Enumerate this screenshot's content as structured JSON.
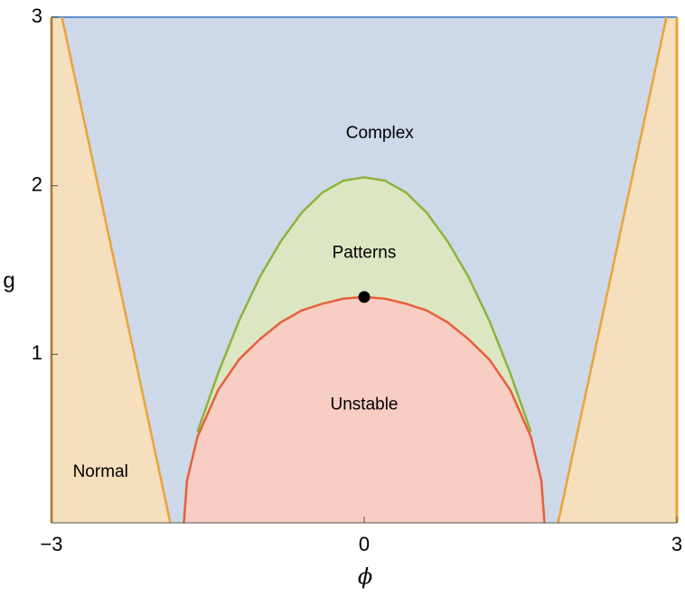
{
  "chart_data": {
    "type": "region",
    "xlabel": "ϕ",
    "ylabel": "g",
    "xlim": [
      -3,
      3
    ],
    "ylim": [
      0,
      3
    ],
    "xticks": [
      {
        "value": -3,
        "label": "−3"
      },
      0,
      3
    ],
    "yticks": [
      1,
      2,
      3
    ],
    "background": "#cdd9e8",
    "top_line_color": "#5f8fcf",
    "curves": [
      {
        "color": "#e8a33c",
        "fill": "#f5dfbc",
        "fill_to": "left",
        "x": [
          -2.9,
          -1.86
        ],
        "y": [
          3,
          0
        ]
      },
      {
        "color": "#e8a33c",
        "fill": "#f5dfbc",
        "fill_to": "right",
        "x": [
          1.86,
          2.9
        ],
        "y": [
          0,
          3
        ]
      },
      {
        "color": "#8cb43c",
        "fill": "#dde6c3",
        "fill_to": "bottom",
        "x": [
          -1.6,
          -1.4,
          -1.2,
          -1.0,
          -0.8,
          -0.6,
          -0.4,
          -0.2,
          0,
          0.2,
          0.4,
          0.6,
          0.8,
          1.0,
          1.2,
          1.4,
          1.6
        ],
        "y": [
          0.54,
          0.89,
          1.2,
          1.46,
          1.67,
          1.84,
          1.96,
          2.03,
          2.05,
          2.03,
          1.96,
          1.84,
          1.67,
          1.46,
          1.2,
          0.89,
          0.54
        ]
      },
      {
        "color": "#e5603a",
        "fill": "#f8cdc4",
        "fill_to": "bottom",
        "x": [
          -1.73,
          -1.7,
          -1.6,
          -1.4,
          -1.2,
          -1.0,
          -0.8,
          -0.6,
          -0.4,
          -0.2,
          0,
          0.2,
          0.4,
          0.6,
          0.8,
          1.0,
          1.2,
          1.4,
          1.6,
          1.7,
          1.73
        ],
        "y": [
          0,
          0.25,
          0.51,
          0.79,
          0.97,
          1.09,
          1.19,
          1.26,
          1.3,
          1.33,
          1.34,
          1.33,
          1.3,
          1.26,
          1.19,
          1.09,
          0.97,
          0.79,
          0.51,
          0.25,
          0
        ]
      }
    ],
    "point": {
      "x": 0,
      "y": 1.34,
      "color": "#000000"
    },
    "annotations": [
      {
        "text": "Complex",
        "x": 0.15,
        "y": 2.31
      },
      {
        "text": "Patterns",
        "x": 0.0,
        "y": 1.6
      },
      {
        "text": "Unstable",
        "x": 0.0,
        "y": 0.7
      },
      {
        "text": "Normal",
        "x": -2.53,
        "y": 0.3
      }
    ]
  }
}
